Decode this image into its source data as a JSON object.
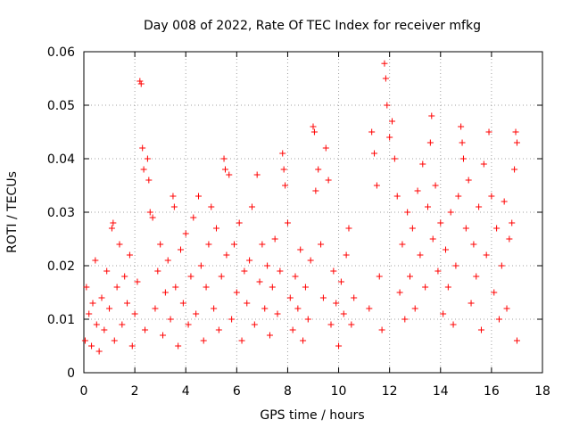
{
  "chart_data": {
    "type": "scatter",
    "title": "Day 008 of 2022, Rate Of TEC Index for receiver mfkg",
    "xlabel": "GPS time / hours",
    "ylabel": "ROTI / TECUs",
    "xlim": [
      0,
      18
    ],
    "ylim": [
      0,
      0.06
    ],
    "xticks": [
      0,
      2,
      4,
      6,
      8,
      10,
      12,
      14,
      16,
      18
    ],
    "xtick_labels": [
      "0",
      "2",
      "4",
      "6",
      "8",
      "10",
      "12",
      "14",
      "16",
      "18"
    ],
    "yticks": [
      0,
      0.01,
      0.02,
      0.03,
      0.04,
      0.05,
      0.06
    ],
    "ytick_labels": [
      "0",
      "0.01",
      "0.02",
      "0.03",
      "0.04",
      "0.05",
      "0.06"
    ],
    "grid": true,
    "marker": "+",
    "color": "#ff0000",
    "series": [
      {
        "name": "ROTI",
        "points": [
          [
            0.05,
            0.006
          ],
          [
            0.1,
            0.016
          ],
          [
            0.2,
            0.011
          ],
          [
            0.3,
            0.005
          ],
          [
            0.35,
            0.013
          ],
          [
            0.45,
            0.021
          ],
          [
            0.5,
            0.009
          ],
          [
            0.6,
            0.004
          ],
          [
            0.7,
            0.014
          ],
          [
            0.8,
            0.008
          ],
          [
            0.9,
            0.019
          ],
          [
            1.0,
            0.012
          ],
          [
            1.1,
            0.027
          ],
          [
            1.15,
            0.028
          ],
          [
            1.2,
            0.006
          ],
          [
            1.3,
            0.016
          ],
          [
            1.4,
            0.024
          ],
          [
            1.5,
            0.009
          ],
          [
            1.6,
            0.018
          ],
          [
            1.7,
            0.013
          ],
          [
            1.8,
            0.022
          ],
          [
            1.9,
            0.005
          ],
          [
            2.0,
            0.011
          ],
          [
            2.1,
            0.017
          ],
          [
            2.2,
            0.0545
          ],
          [
            2.25,
            0.054
          ],
          [
            2.3,
            0.042
          ],
          [
            2.35,
            0.038
          ],
          [
            2.4,
            0.008
          ],
          [
            2.5,
            0.04
          ],
          [
            2.55,
            0.036
          ],
          [
            2.6,
            0.03
          ],
          [
            2.7,
            0.029
          ],
          [
            2.8,
            0.012
          ],
          [
            2.9,
            0.019
          ],
          [
            3.0,
            0.024
          ],
          [
            3.1,
            0.007
          ],
          [
            3.2,
            0.015
          ],
          [
            3.3,
            0.021
          ],
          [
            3.4,
            0.01
          ],
          [
            3.5,
            0.033
          ],
          [
            3.55,
            0.031
          ],
          [
            3.6,
            0.016
          ],
          [
            3.7,
            0.005
          ],
          [
            3.8,
            0.023
          ],
          [
            3.9,
            0.013
          ],
          [
            4.0,
            0.026
          ],
          [
            4.1,
            0.009
          ],
          [
            4.2,
            0.018
          ],
          [
            4.3,
            0.029
          ],
          [
            4.4,
            0.011
          ],
          [
            4.5,
            0.033
          ],
          [
            4.6,
            0.02
          ],
          [
            4.7,
            0.006
          ],
          [
            4.8,
            0.016
          ],
          [
            4.9,
            0.024
          ],
          [
            5.0,
            0.031
          ],
          [
            5.1,
            0.012
          ],
          [
            5.2,
            0.027
          ],
          [
            5.3,
            0.008
          ],
          [
            5.4,
            0.018
          ],
          [
            5.5,
            0.04
          ],
          [
            5.55,
            0.038
          ],
          [
            5.6,
            0.022
          ],
          [
            5.7,
            0.037
          ],
          [
            5.8,
            0.01
          ],
          [
            5.9,
            0.024
          ],
          [
            6.0,
            0.015
          ],
          [
            6.1,
            0.028
          ],
          [
            6.2,
            0.006
          ],
          [
            6.3,
            0.019
          ],
          [
            6.4,
            0.013
          ],
          [
            6.5,
            0.021
          ],
          [
            6.6,
            0.031
          ],
          [
            6.7,
            0.009
          ],
          [
            6.8,
            0.037
          ],
          [
            6.9,
            0.017
          ],
          [
            7.0,
            0.024
          ],
          [
            7.1,
            0.012
          ],
          [
            7.2,
            0.02
          ],
          [
            7.3,
            0.007
          ],
          [
            7.4,
            0.016
          ],
          [
            7.5,
            0.025
          ],
          [
            7.6,
            0.011
          ],
          [
            7.7,
            0.019
          ],
          [
            7.8,
            0.041
          ],
          [
            7.85,
            0.038
          ],
          [
            7.9,
            0.035
          ],
          [
            8.0,
            0.028
          ],
          [
            8.1,
            0.014
          ],
          [
            8.2,
            0.008
          ],
          [
            8.3,
            0.018
          ],
          [
            8.4,
            0.012
          ],
          [
            8.5,
            0.023
          ],
          [
            8.6,
            0.006
          ],
          [
            8.7,
            0.016
          ],
          [
            8.8,
            0.01
          ],
          [
            8.9,
            0.021
          ],
          [
            9.0,
            0.046
          ],
          [
            9.05,
            0.045
          ],
          [
            9.1,
            0.034
          ],
          [
            9.2,
            0.038
          ],
          [
            9.3,
            0.024
          ],
          [
            9.4,
            0.014
          ],
          [
            9.5,
            0.042
          ],
          [
            9.6,
            0.036
          ],
          [
            9.7,
            0.009
          ],
          [
            9.8,
            0.019
          ],
          [
            9.9,
            0.013
          ],
          [
            10.0,
            0.005
          ],
          [
            10.1,
            0.017
          ],
          [
            10.2,
            0.011
          ],
          [
            10.3,
            0.022
          ],
          [
            10.4,
            0.027
          ],
          [
            10.5,
            0.009
          ],
          [
            10.6,
            0.014
          ],
          [
            11.2,
            0.012
          ],
          [
            11.3,
            0.045
          ],
          [
            11.4,
            0.041
          ],
          [
            11.5,
            0.035
          ],
          [
            11.6,
            0.018
          ],
          [
            11.7,
            0.008
          ],
          [
            11.8,
            0.0578
          ],
          [
            11.85,
            0.055
          ],
          [
            11.9,
            0.05
          ],
          [
            12.0,
            0.044
          ],
          [
            12.1,
            0.047
          ],
          [
            12.2,
            0.04
          ],
          [
            12.3,
            0.033
          ],
          [
            12.4,
            0.015
          ],
          [
            12.5,
            0.024
          ],
          [
            12.6,
            0.01
          ],
          [
            12.7,
            0.03
          ],
          [
            12.8,
            0.018
          ],
          [
            12.9,
            0.027
          ],
          [
            13.0,
            0.012
          ],
          [
            13.1,
            0.034
          ],
          [
            13.2,
            0.022
          ],
          [
            13.3,
            0.039
          ],
          [
            13.4,
            0.016
          ],
          [
            13.5,
            0.031
          ],
          [
            13.6,
            0.043
          ],
          [
            13.65,
            0.048
          ],
          [
            13.7,
            0.025
          ],
          [
            13.8,
            0.035
          ],
          [
            13.9,
            0.019
          ],
          [
            14.0,
            0.028
          ],
          [
            14.1,
            0.011
          ],
          [
            14.2,
            0.023
          ],
          [
            14.3,
            0.016
          ],
          [
            14.4,
            0.03
          ],
          [
            14.5,
            0.009
          ],
          [
            14.6,
            0.02
          ],
          [
            14.7,
            0.033
          ],
          [
            14.8,
            0.046
          ],
          [
            14.85,
            0.043
          ],
          [
            14.9,
            0.04
          ],
          [
            15.0,
            0.027
          ],
          [
            15.1,
            0.036
          ],
          [
            15.2,
            0.013
          ],
          [
            15.3,
            0.024
          ],
          [
            15.4,
            0.018
          ],
          [
            15.5,
            0.031
          ],
          [
            15.6,
            0.008
          ],
          [
            15.7,
            0.039
          ],
          [
            15.8,
            0.022
          ],
          [
            15.9,
            0.045
          ],
          [
            16.0,
            0.033
          ],
          [
            16.1,
            0.015
          ],
          [
            16.2,
            0.027
          ],
          [
            16.3,
            0.01
          ],
          [
            16.4,
            0.02
          ],
          [
            16.5,
            0.032
          ],
          [
            16.6,
            0.012
          ],
          [
            16.7,
            0.025
          ],
          [
            16.8,
            0.028
          ],
          [
            16.9,
            0.038
          ],
          [
            16.95,
            0.045
          ],
          [
            17.0,
            0.043
          ],
          [
            17.0,
            0.006
          ]
        ]
      }
    ]
  }
}
